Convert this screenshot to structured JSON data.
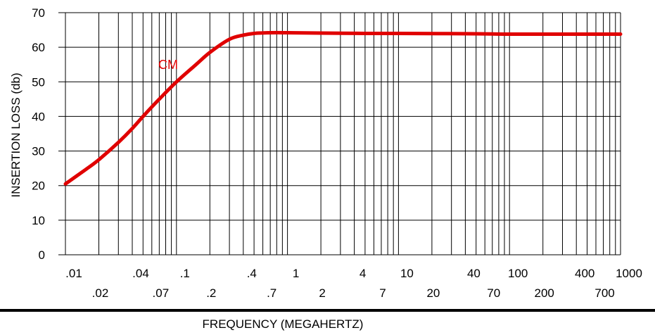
{
  "chart_data": {
    "type": "line",
    "xlabel": "FREQUENCY (MEGAHERTZ)",
    "ylabel": "INSERTION LOSS (db)",
    "xscale": "log",
    "xlim": [
      0.01,
      1000
    ],
    "ylim": [
      0,
      70
    ],
    "grid": true,
    "y_ticks": [
      {
        "value": 0,
        "label": "0"
      },
      {
        "value": 10,
        "label": "10"
      },
      {
        "value": 20,
        "label": "20"
      },
      {
        "value": 30,
        "label": "30"
      },
      {
        "value": 40,
        "label": "40"
      },
      {
        "value": 50,
        "label": "50"
      },
      {
        "value": 60,
        "label": "60"
      },
      {
        "value": 70,
        "label": "70"
      }
    ],
    "x_ticks_upper": [
      {
        "value": 0.01,
        "label": ".01"
      },
      {
        "value": 0.04,
        "label": ".04"
      },
      {
        "value": 0.1,
        "label": ".1"
      },
      {
        "value": 0.4,
        "label": ".4"
      },
      {
        "value": 1,
        "label": "1"
      },
      {
        "value": 4,
        "label": "4"
      },
      {
        "value": 10,
        "label": "10"
      },
      {
        "value": 40,
        "label": "40"
      },
      {
        "value": 100,
        "label": "100"
      },
      {
        "value": 400,
        "label": "400"
      },
      {
        "value": 1000,
        "label": "1000"
      }
    ],
    "x_ticks_lower": [
      {
        "value": 0.02,
        "label": ".02"
      },
      {
        "value": 0.07,
        "label": ".07"
      },
      {
        "value": 0.2,
        "label": ".2"
      },
      {
        "value": 0.7,
        "label": ".7"
      },
      {
        "value": 2,
        "label": "2"
      },
      {
        "value": 7,
        "label": "7"
      },
      {
        "value": 20,
        "label": "20"
      },
      {
        "value": 70,
        "label": "70"
      },
      {
        "value": 200,
        "label": "200"
      },
      {
        "value": 700,
        "label": "700"
      }
    ],
    "series": [
      {
        "name": "CM",
        "color": "#e00000",
        "x": [
          0.01,
          0.015,
          0.02,
          0.03,
          0.04,
          0.05,
          0.07,
          0.1,
          0.15,
          0.2,
          0.3,
          0.4,
          0.5,
          0.7,
          1,
          2,
          5,
          10,
          50,
          100,
          500,
          1000
        ],
        "y": [
          20.5,
          24.5,
          27.5,
          32.5,
          36.5,
          40.0,
          45.0,
          50.0,
          55.0,
          58.5,
          62.3,
          63.5,
          64.0,
          64.2,
          64.2,
          64.1,
          64.0,
          64.0,
          63.9,
          63.8,
          63.8,
          63.8
        ]
      }
    ],
    "annotations": [
      {
        "text": "CM",
        "color": "#e00000",
        "x": 0.088,
        "y": 60
      }
    ]
  }
}
